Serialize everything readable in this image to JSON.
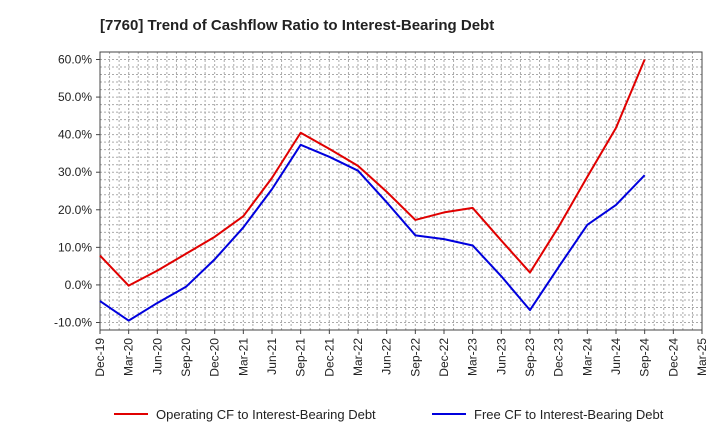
{
  "chart_data": {
    "type": "line",
    "title": "[7760]  Trend of Cashflow Ratio to Interest-Bearing Debt",
    "xlabel": "",
    "ylabel": "",
    "categories": [
      "Dec-19",
      "Mar-20",
      "Jun-20",
      "Sep-20",
      "Dec-20",
      "Mar-21",
      "Jun-21",
      "Sep-21",
      "Dec-21",
      "Mar-22",
      "Jun-22",
      "Sep-22",
      "Dec-22",
      "Mar-23",
      "Jun-23",
      "Sep-23",
      "Dec-23",
      "Mar-24",
      "Jun-24",
      "Sep-24",
      "Dec-24",
      "Mar-25"
    ],
    "y_ticks": [
      "-10.0%",
      "0.0%",
      "10.0%",
      "20.0%",
      "30.0%",
      "40.0%",
      "50.0%",
      "60.0%"
    ],
    "ylim": [
      -12,
      62
    ],
    "grid": true,
    "legend_position": "bottom",
    "series": [
      {
        "name": "Operating CF to Interest-Bearing Debt",
        "color": "#e00000",
        "values": [
          7.8,
          -0.2,
          3.8,
          8.3,
          12.8,
          18.3,
          28.5,
          40.5,
          36.2,
          31.7,
          24.8,
          17.3,
          19.3,
          20.5,
          11.8,
          3.3,
          15.5,
          28.8,
          41.8,
          60.0,
          null,
          null
        ]
      },
      {
        "name": "Free CF to Interest-Bearing Debt",
        "color": "#0000dd",
        "values": [
          -4.3,
          -9.5,
          -4.8,
          -0.5,
          6.8,
          15.3,
          25.5,
          37.3,
          34.1,
          30.4,
          22.0,
          13.2,
          12.2,
          10.5,
          2.3,
          -6.7,
          4.8,
          16.0,
          21.3,
          29.2,
          null,
          null
        ]
      }
    ]
  }
}
